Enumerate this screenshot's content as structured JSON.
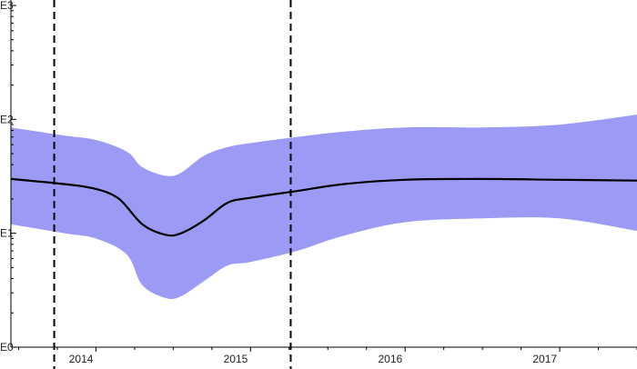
{
  "chart_data": {
    "type": "area",
    "title": "",
    "xlabel": "",
    "ylabel": "",
    "y_scale": "log10",
    "ylim": [
      1,
      1000
    ],
    "y_ticks": [
      {
        "value": 1,
        "label": "E0"
      },
      {
        "value": 10,
        "label": "E1"
      },
      {
        "value": 100,
        "label": "E2"
      },
      {
        "value": 1000,
        "label": "E3"
      }
    ],
    "xlim": [
      2013.45,
      2017.5
    ],
    "x_ticks": [
      {
        "value": 2014,
        "label": "2014"
      },
      {
        "value": 2015,
        "label": "2015"
      },
      {
        "value": 2016,
        "label": "2016"
      },
      {
        "value": 2017,
        "label": "2017"
      }
    ],
    "grid": false,
    "legend": "none",
    "colors": {
      "band": "#9b9bf5",
      "median": "#000000",
      "axis": "#000000"
    },
    "band": {
      "x": [
        2013.45,
        2013.8,
        2014.0,
        2014.2,
        2014.3,
        2014.45,
        2014.55,
        2014.7,
        2014.85,
        2015.0,
        2015.3,
        2015.6,
        2016.0,
        2016.5,
        2017.0,
        2017.5
      ],
      "upper": [
        85,
        72,
        66,
        52,
        38,
        32,
        34,
        48,
        57,
        62,
        70,
        78,
        85,
        85,
        90,
        110
      ],
      "lower": [
        12,
        10,
        9,
        6.5,
        3.5,
        2.7,
        2.8,
        3.8,
        5.2,
        5.6,
        7,
        9.5,
        12.5,
        13.5,
        13.5,
        10.5
      ]
    },
    "series": [
      {
        "x": [
          2013.45,
          2013.8,
          2014.0,
          2014.15,
          2014.3,
          2014.45,
          2014.55,
          2014.7,
          2014.85,
          2015.0,
          2015.3,
          2015.6,
          2016.0,
          2016.5,
          2017.0,
          2017.5
        ],
        "values": [
          30,
          27,
          24.5,
          20,
          12,
          9.7,
          10,
          13,
          18.5,
          20.5,
          23.5,
          27,
          29.5,
          30,
          29.5,
          29
        ]
      }
    ],
    "reference_lines": [
      {
        "axis": "x",
        "value": 2013.73,
        "style": "dashed"
      },
      {
        "axis": "x",
        "value": 2015.26,
        "style": "dashed"
      }
    ]
  }
}
